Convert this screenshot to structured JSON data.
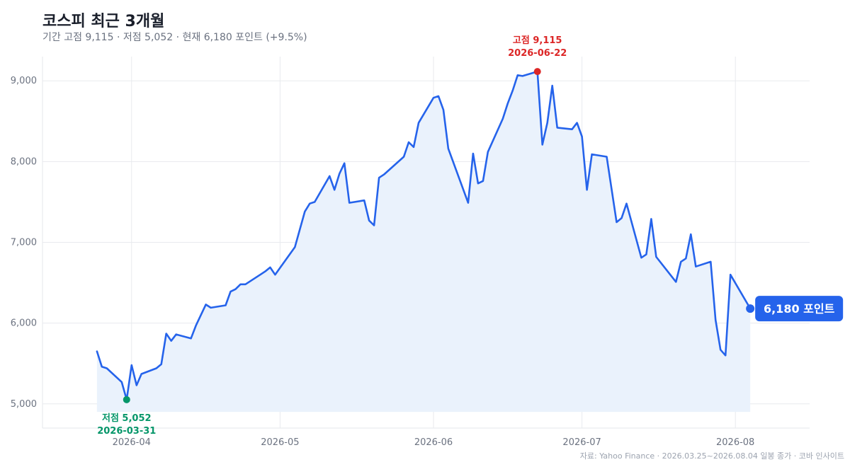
{
  "chart_data": {
    "type": "line",
    "title": "코스피 최근 3개월",
    "subtitle": "기간 고점 9,115 · 저점 5,052 · 현재 6,180 포인트 (+9.5%)",
    "source": "자료: Yahoo Finance · 2026.03.25~2026.08.04 일봉 종가 · 코바 인사이트",
    "xlabel": "",
    "ylabel": "",
    "ylim": [
      4700,
      9300
    ],
    "y_ticks": [
      5000,
      6000,
      7000,
      8000,
      9000
    ],
    "y_tick_labels": [
      "5,000",
      "6,000",
      "7,000",
      "8,000",
      "9,000"
    ],
    "x_ticks": [
      "2026-04-01",
      "2026-05-01",
      "2026-06-01",
      "2026-07-01",
      "2026-08-01"
    ],
    "x_tick_labels": [
      "2026-04",
      "2026-05",
      "2026-06",
      "2026-07",
      "2026-08"
    ],
    "x_range": [
      "2026-03-14",
      "2026-08-16"
    ],
    "grid": true,
    "series": [
      {
        "name": "",
        "color": "#2563eb",
        "fill": "#eaf2fc",
        "points": [
          [
            "2026-03-25",
            5650
          ],
          [
            "2026-03-26",
            5460
          ],
          [
            "2026-03-27",
            5440
          ],
          [
            "2026-03-30",
            5270
          ],
          [
            "2026-03-31",
            5052
          ],
          [
            "2026-04-01",
            5480
          ],
          [
            "2026-04-02",
            5230
          ],
          [
            "2026-04-03",
            5370
          ],
          [
            "2026-04-06",
            5440
          ],
          [
            "2026-04-07",
            5490
          ],
          [
            "2026-04-08",
            5870
          ],
          [
            "2026-04-09",
            5780
          ],
          [
            "2026-04-10",
            5860
          ],
          [
            "2026-04-13",
            5810
          ],
          [
            "2026-04-14",
            5970
          ],
          [
            "2026-04-16",
            6230
          ],
          [
            "2026-04-17",
            6190
          ],
          [
            "2026-04-20",
            6220
          ],
          [
            "2026-04-21",
            6390
          ],
          [
            "2026-04-22",
            6420
          ],
          [
            "2026-04-23",
            6480
          ],
          [
            "2026-04-24",
            6480
          ],
          [
            "2026-04-27",
            6600
          ],
          [
            "2026-04-28",
            6640
          ],
          [
            "2026-04-29",
            6690
          ],
          [
            "2026-04-30",
            6600
          ],
          [
            "2026-05-04",
            6940
          ],
          [
            "2026-05-06",
            7380
          ],
          [
            "2026-05-07",
            7480
          ],
          [
            "2026-05-08",
            7500
          ],
          [
            "2026-05-11",
            7820
          ],
          [
            "2026-05-12",
            7650
          ],
          [
            "2026-05-13",
            7850
          ],
          [
            "2026-05-14",
            7980
          ],
          [
            "2026-05-15",
            7490
          ],
          [
            "2026-05-18",
            7520
          ],
          [
            "2026-05-19",
            7270
          ],
          [
            "2026-05-20",
            7210
          ],
          [
            "2026-05-21",
            7800
          ],
          [
            "2026-05-22",
            7840
          ],
          [
            "2026-05-26",
            8060
          ],
          [
            "2026-05-27",
            8240
          ],
          [
            "2026-05-28",
            8180
          ],
          [
            "2026-05-29",
            8480
          ],
          [
            "2026-06-01",
            8790
          ],
          [
            "2026-06-02",
            8810
          ],
          [
            "2026-06-03",
            8640
          ],
          [
            "2026-06-04",
            8160
          ],
          [
            "2026-06-08",
            7490
          ],
          [
            "2026-06-09",
            8100
          ],
          [
            "2026-06-10",
            7730
          ],
          [
            "2026-06-11",
            7760
          ],
          [
            "2026-06-12",
            8120
          ],
          [
            "2026-06-15",
            8530
          ],
          [
            "2026-06-16",
            8720
          ],
          [
            "2026-06-17",
            8880
          ],
          [
            "2026-06-18",
            9070
          ],
          [
            "2026-06-19",
            9060
          ],
          [
            "2026-06-22",
            9115
          ],
          [
            "2026-06-23",
            8210
          ],
          [
            "2026-06-24",
            8480
          ],
          [
            "2026-06-25",
            8940
          ],
          [
            "2026-06-26",
            8420
          ],
          [
            "2026-06-29",
            8400
          ],
          [
            "2026-06-30",
            8480
          ],
          [
            "2026-07-01",
            8310
          ],
          [
            "2026-07-02",
            7650
          ],
          [
            "2026-07-03",
            8090
          ],
          [
            "2026-07-06",
            8060
          ],
          [
            "2026-07-08",
            7250
          ],
          [
            "2026-07-09",
            7300
          ],
          [
            "2026-07-10",
            7480
          ],
          [
            "2026-07-13",
            6810
          ],
          [
            "2026-07-14",
            6850
          ],
          [
            "2026-07-15",
            7290
          ],
          [
            "2026-07-16",
            6820
          ],
          [
            "2026-07-20",
            6510
          ],
          [
            "2026-07-21",
            6760
          ],
          [
            "2026-07-22",
            6800
          ],
          [
            "2026-07-23",
            7100
          ],
          [
            "2026-07-24",
            6700
          ],
          [
            "2026-07-27",
            6760
          ],
          [
            "2026-07-28",
            6040
          ],
          [
            "2026-07-29",
            5670
          ],
          [
            "2026-07-30",
            5600
          ],
          [
            "2026-07-31",
            6600
          ],
          [
            "2026-08-04",
            6180
          ]
        ]
      }
    ],
    "annotations": {
      "high": {
        "label": "고점 9,115",
        "date_label": "2026-06-22",
        "x": "2026-06-22",
        "y": 9115,
        "color": "#dc2626"
      },
      "low": {
        "label": "저점 5,052",
        "date_label": "2026-03-31",
        "x": "2026-03-31",
        "y": 5052,
        "color": "#059669"
      },
      "current": {
        "label": "6,180 포인트",
        "x": "2026-08-04",
        "y": 6180,
        "color": "#2563eb"
      }
    }
  }
}
